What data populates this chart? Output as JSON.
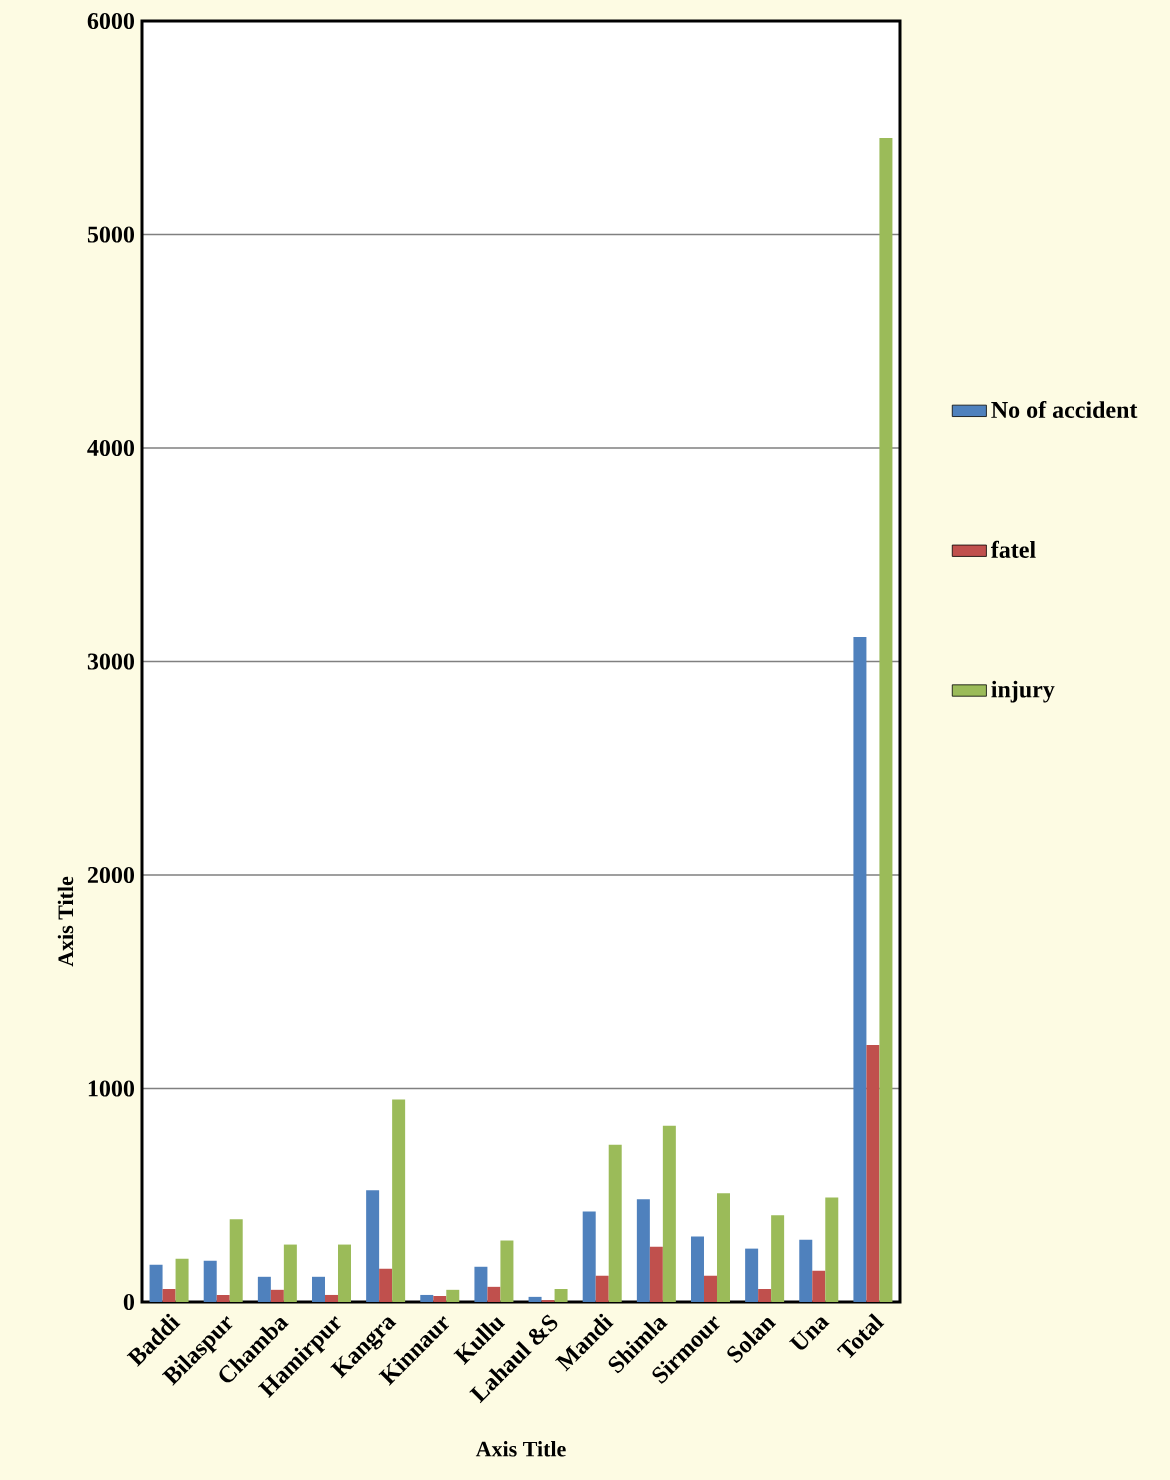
{
  "chart_data": {
    "type": "bar",
    "xlabel": "Axis Title",
    "ylabel": "Axis Title",
    "categories": [
      "Baddi",
      "Bilaspur",
      "Chamba",
      "Hamirpur",
      "Kangra",
      "Kinnaur",
      "Kullu",
      "Lahaul &S",
      "Mandi",
      "Shimla",
      "Sirmour",
      "Solan",
      "Una",
      "Total"
    ],
    "series": [
      {
        "name": "No of accident",
        "color": "#4f81bd",
        "values": [
          174,
          193,
          118,
          118,
          523,
          33,
          165,
          24,
          424,
          481,
          307,
          250,
          292,
          3115
        ]
      },
      {
        "name": "fatel",
        "color": "#c0504d",
        "values": [
          61,
          33,
          57,
          33,
          156,
          28,
          71,
          9,
          123,
          259,
          123,
          61,
          146,
          1204
        ]
      },
      {
        "name": "injury",
        "color": "#9bbb59",
        "values": [
          203,
          387,
          269,
          269,
          948,
          57,
          288,
          61,
          736,
          825,
          509,
          406,
          490,
          5452
        ]
      }
    ],
    "ylim": [
      0,
      6000
    ],
    "yticks": [
      0,
      1000,
      2000,
      3000,
      4000,
      5000,
      6000
    ],
    "grid": "y",
    "legend": "right"
  }
}
